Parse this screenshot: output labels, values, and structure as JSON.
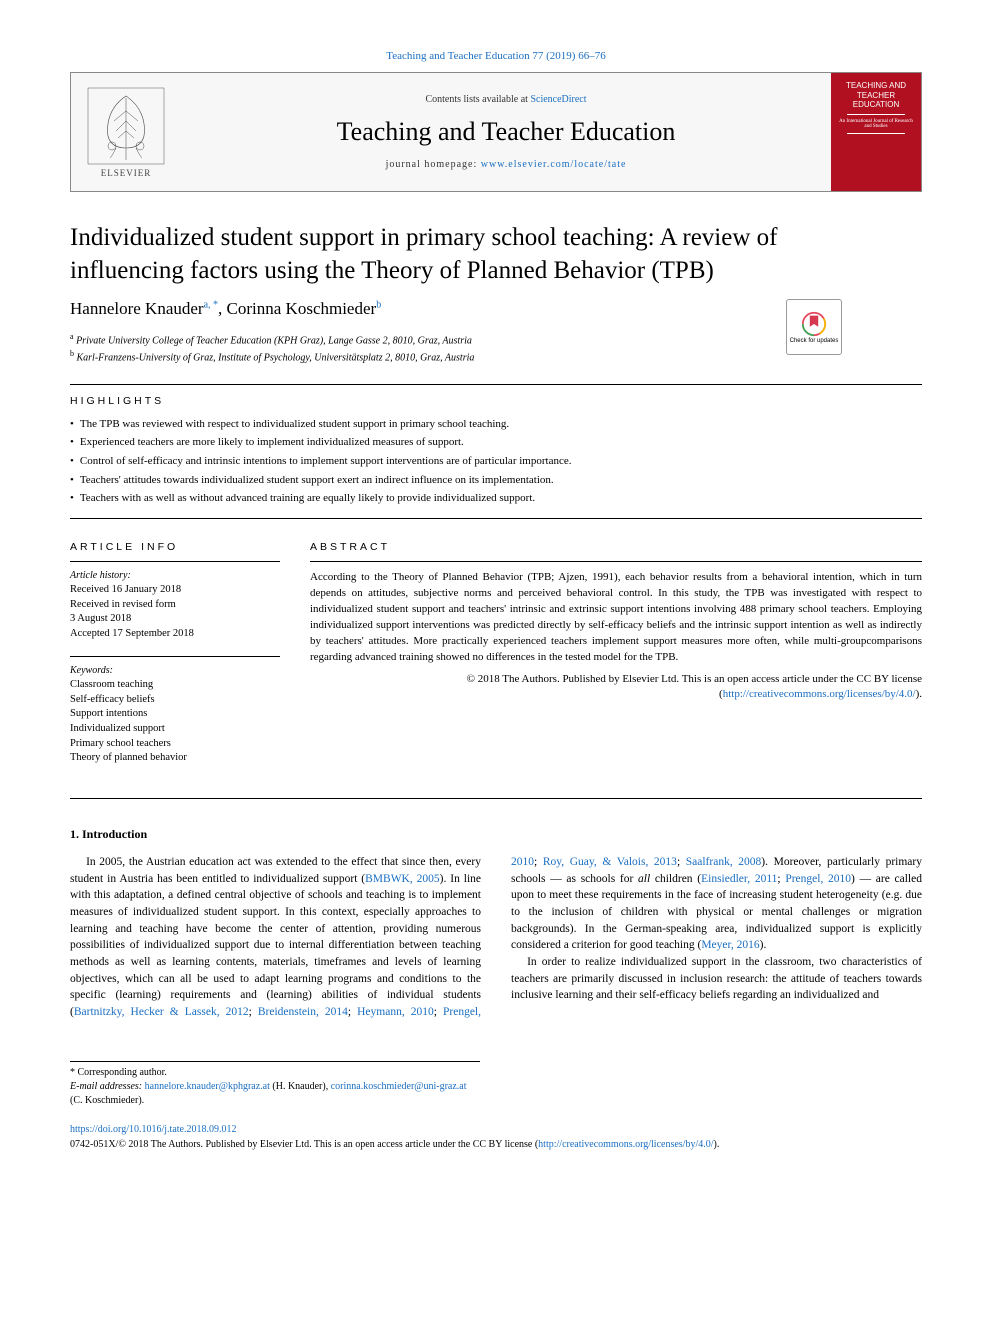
{
  "top_citation": "Teaching and Teacher Education 77 (2019) 66–76",
  "header": {
    "contents_prefix": "Contents lists available at ",
    "contents_link": "ScienceDirect",
    "journal_name": "Teaching and Teacher Education",
    "homepage_prefix": "journal homepage: ",
    "homepage_link": "www.elsevier.com/locate/tate",
    "elsevier_label": "ELSEVIER",
    "cover_title": "TEACHING AND TEACHER EDUCATION",
    "cover_subtitle": "An International Journal of Research and Studies"
  },
  "check_updates_label": "Check for updates",
  "title": "Individualized student support in primary school teaching: A review of influencing factors using the Theory of Planned Behavior (TPB)",
  "authors": {
    "a1_name": "Hannelore Knauder",
    "a1_sup": "a, *",
    "sep": ", ",
    "a2_name": "Corinna Koschmieder",
    "a2_sup": "b"
  },
  "affiliations": {
    "a": "Private University College of Teacher Education (KPH Graz), Lange Gasse 2, 8010, Graz, Austria",
    "b": "Karl-Franzens-University of Graz, Institute of Psychology, Universitätsplatz 2, 8010, Graz, Austria"
  },
  "highlights_label": "HIGHLIGHTS",
  "highlights": [
    "The TPB was reviewed with respect to individualized student support in primary school teaching.",
    "Experienced teachers are more likely to implement individualized measures of support.",
    "Control of self-efficacy and intrinsic intentions to implement support interventions are of particular importance.",
    "Teachers' attitudes towards individualized student support exert an indirect influence on its implementation.",
    "Teachers with as well as without advanced training are equally likely to provide individualized support."
  ],
  "article_info_label": "ARTICLE INFO",
  "abstract_label": "ABSTRACT",
  "history_label": "Article history:",
  "history": "Received 16 January 2018\nReceived in revised form\n3 August 2018\nAccepted 17 September 2018",
  "keywords_label": "Keywords:",
  "keywords": "Classroom teaching\nSelf-efficacy beliefs\nSupport intentions\nIndividualized support\nPrimary school teachers\nTheory of planned behavior",
  "abstract": "According to the Theory of Planned Behavior (TPB; Ajzen, 1991), each behavior results from a behavioral intention, which in turn depends on attitudes, subjective norms and perceived behavioral control. In this study, the TPB was investigated with respect to individualized student support and teachers' intrinsic and extrinsic support intentions involving 488 primary school teachers. Employing individualized support interventions was predicted directly by self-efficacy beliefs and the intrinsic support intention as well as indirectly by teachers' attitudes. More practically experienced teachers implement support measures more often, while multi-groupcomparisons regarding advanced training showed no differences in the tested model for the TPB.",
  "copyright_line": "© 2018 The Authors. Published by Elsevier Ltd. This is an open access article under the CC BY license",
  "cc_link": "http://creativecommons.org/licenses/by/4.0/",
  "intro_heading": "1. Introduction",
  "body": {
    "p1a": "In 2005, the Austrian education act was extended to the effect that since then, every student in Austria has been entitled to individualized support (",
    "p1_link1": "BMBWK, 2005",
    "p1b": "). In line with this adaptation, a defined central objective of schools and teaching is to implement measures of individualized student support. In this context, especially approaches to learning and teaching have become the center of attention, providing numerous possibilities of individualized support due to internal differentiation between teaching methods as well as learning contents, materials, ",
    "p2a": "timeframes and levels of learning objectives, which can all be used to adapt learning programs and conditions to the specific (learning) requirements and (learning) abilities of individual students (",
    "p2_link1": "Bartnitzky, Hecker & Lassek, 2012",
    "p2_link2": "Breidenstein, 2014",
    "p2_link3": "Heymann, 2010",
    "p2_link4": "Prengel, 2010",
    "p2_link5": "Roy, Guay, & Valois, 2013",
    "p2_link6": "Saalfrank, 2008",
    "p2b": "). Moreover, particularly primary schools — as schools for ",
    "p2_ital": "all",
    "p2c": " children (",
    "p2_link7": "Einsiedler, 2011",
    "p2_link8": "Prengel, 2010",
    "p2d": ") — are called upon to meet these requirements in the face of increasing student heterogeneity (e.g. due to the inclusion of children with physical or mental challenges or migration backgrounds). In the German-speaking area, individualized support is explicitly considered a criterion for good teaching (",
    "p2_link9": "Meyer, 2016",
    "p2e": ").",
    "p3": "In order to realize individualized support in the classroom, two characteristics of teachers are primarily discussed in inclusion research: the attitude of teachers towards inclusive learning and their self-efficacy beliefs regarding an individualized and"
  },
  "footnote": {
    "corresp": "* Corresponding author.",
    "email_label": "E-mail addresses:",
    "email1": "hannelore.knauder@kphgraz.at",
    "email1_name": " (H. Knauder), ",
    "email2": "corinna.koschmieder@uni-graz.at",
    "email2_name": " (C. Koschmieder)."
  },
  "footer": {
    "doi": "https://doi.org/10.1016/j.tate.2018.09.012",
    "issn_line_a": "0742-051X/© 2018 The Authors. Published by Elsevier Ltd. This is an open access article under the CC BY license (",
    "issn_link": "http://creativecommons.org/licenses/by/4.0/",
    "issn_line_b": ")."
  },
  "colors": {
    "link": "#1a6ec1",
    "cover_bg": "#b01020",
    "rule": "#000000",
    "header_bg": "#f7f7f7"
  }
}
